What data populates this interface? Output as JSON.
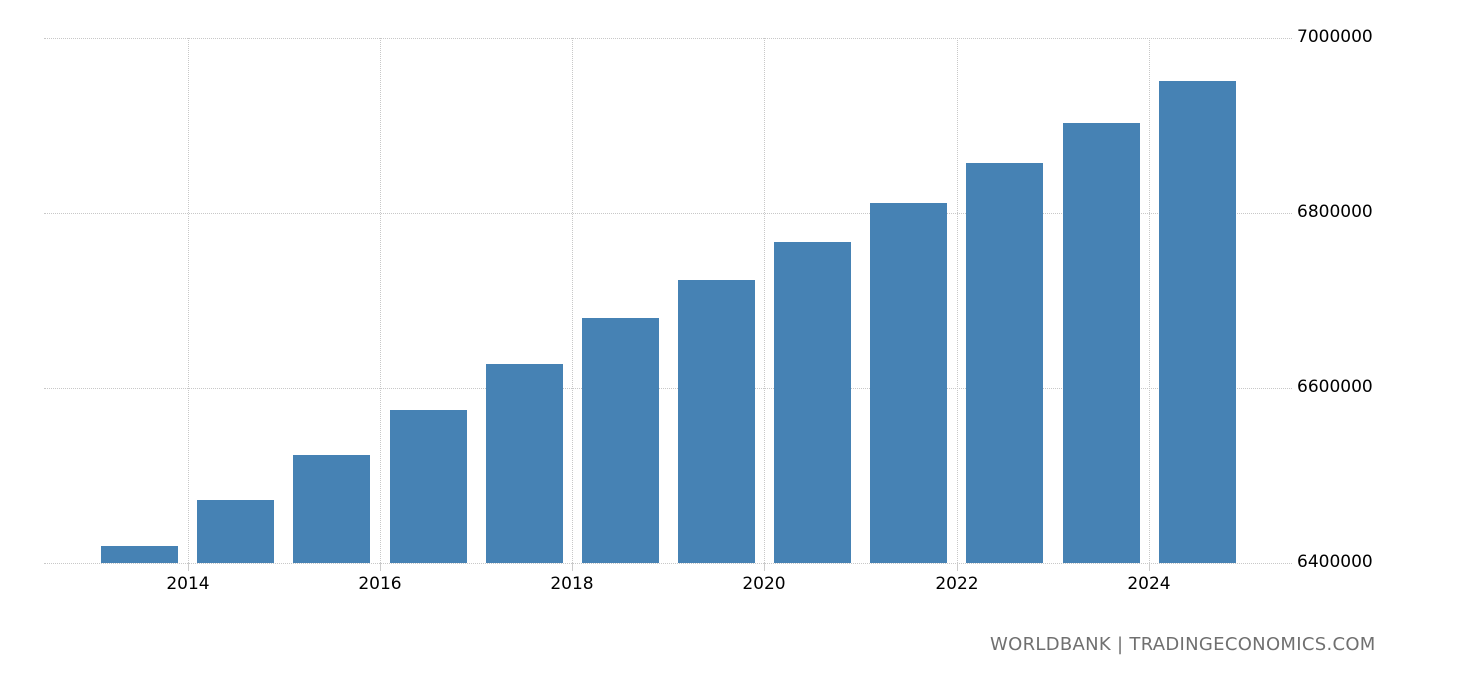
{
  "chart_data": {
    "type": "bar",
    "title": "",
    "xlabel": "",
    "ylabel": "",
    "categories": [
      "2013",
      "2014",
      "2015",
      "2016",
      "2017",
      "2018",
      "2019",
      "2020",
      "2021",
      "2022",
      "2023",
      "2024"
    ],
    "values": [
      6420000,
      6472000,
      6523000,
      6575000,
      6627000,
      6680000,
      6723000,
      6767000,
      6811000,
      6857000,
      6903000,
      6951000
    ],
    "ylim": [
      6400000,
      7000000
    ],
    "yticks": [
      6400000,
      6600000,
      6800000,
      7000000
    ],
    "ytick_labels": [
      "6400000",
      "6600000",
      "6800000",
      "7000000"
    ],
    "xtick_labels": [
      "2014",
      "2016",
      "2018",
      "2020",
      "2022",
      "2024"
    ],
    "grid": true,
    "y_axis_position": "right",
    "legend": null,
    "bar_color": "#4682b4"
  },
  "footer": {
    "source": "WORLDBANK | TRADINGECONOMICS.COM"
  },
  "colors": {
    "bar": "#4682b4",
    "grid": "#c8c8c8",
    "footer_text": "#707070"
  }
}
